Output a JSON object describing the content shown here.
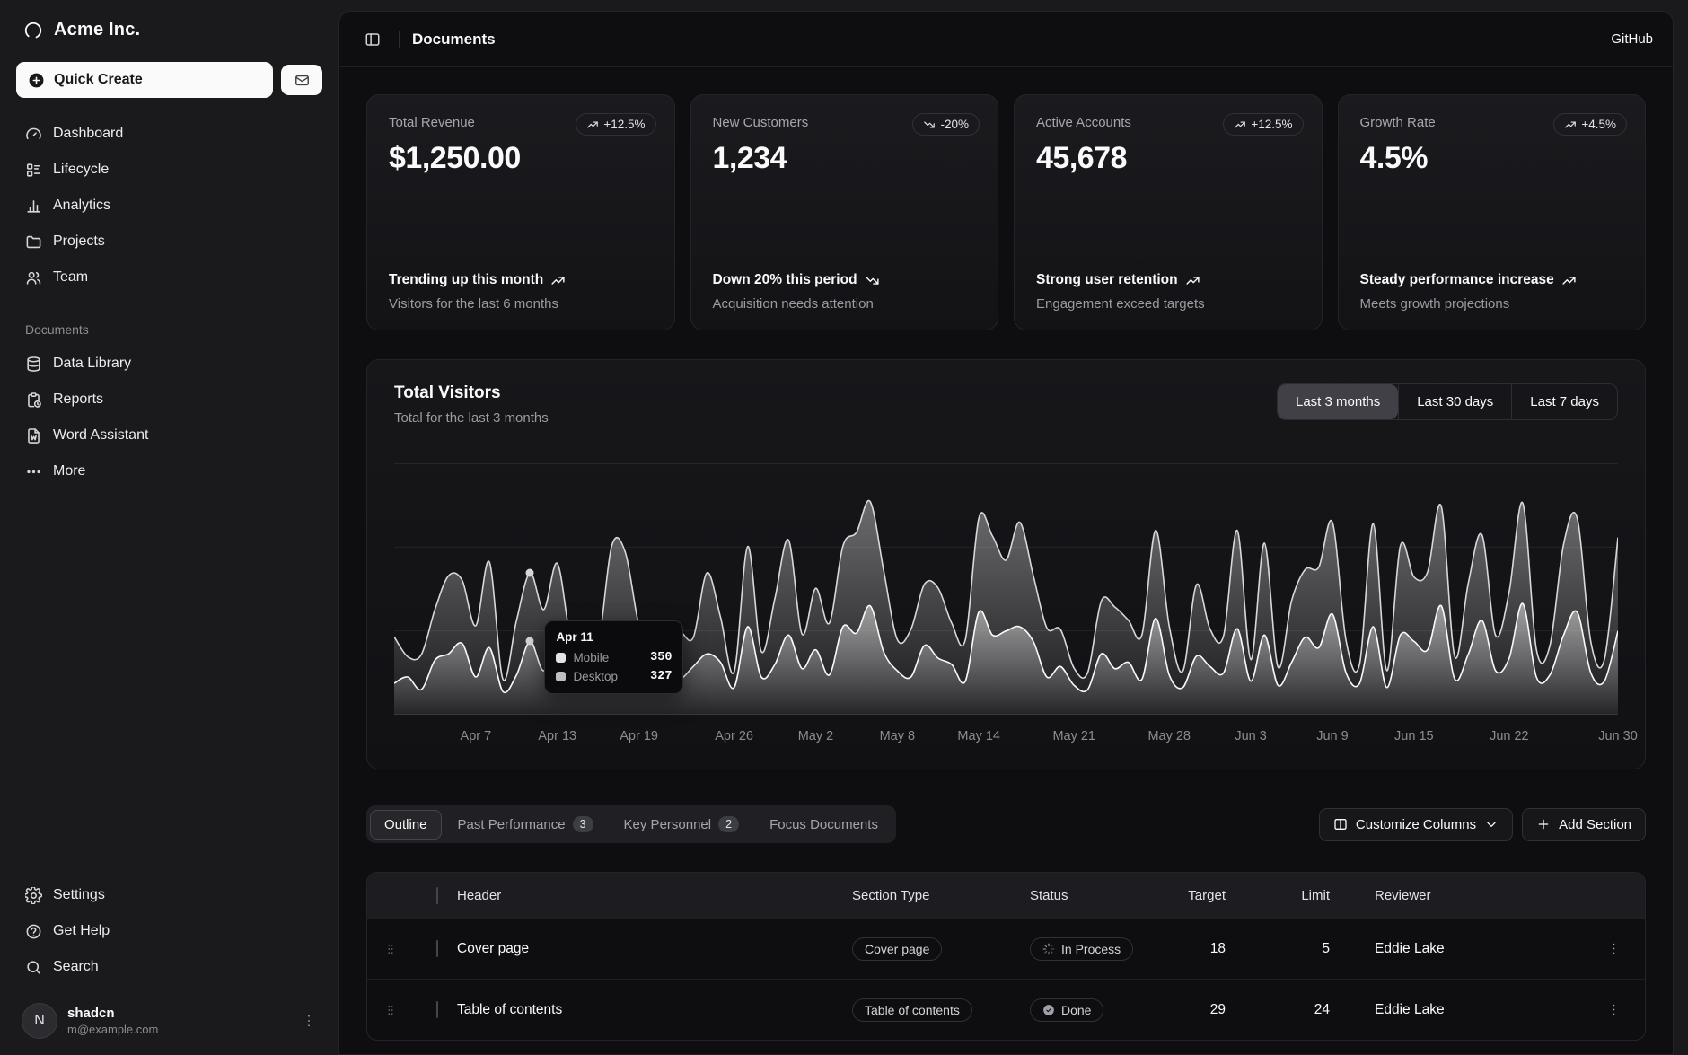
{
  "brand": {
    "name": "Acme Inc.",
    "logo_icon": "ring"
  },
  "header": {
    "title": "Documents",
    "link": "GitHub"
  },
  "sidebar": {
    "quick_create": {
      "label": "Quick Create",
      "icon": "circle-plus"
    },
    "inbox_icon": "mail",
    "main_items": [
      {
        "label": "Dashboard",
        "icon": "dashboard"
      },
      {
        "label": "Lifecycle",
        "icon": "lifecycle"
      },
      {
        "label": "Analytics",
        "icon": "analytics"
      },
      {
        "label": "Projects",
        "icon": "folder"
      },
      {
        "label": "Team",
        "icon": "users"
      }
    ],
    "documents_label": "Documents",
    "document_items": [
      {
        "label": "Data Library",
        "icon": "database"
      },
      {
        "label": "Reports",
        "icon": "report"
      },
      {
        "label": "Word Assistant",
        "icon": "file-word"
      },
      {
        "label": "More",
        "icon": "dots"
      }
    ],
    "footer_items": [
      {
        "label": "Settings",
        "icon": "settings"
      },
      {
        "label": "Get Help",
        "icon": "help"
      },
      {
        "label": "Search",
        "icon": "search"
      }
    ],
    "user": {
      "name": "shadcn",
      "email": "m@example.com",
      "avatar_initial": "N"
    }
  },
  "stat_cards": [
    {
      "label": "Total Revenue",
      "badge": "+12.5%",
      "trend": "up",
      "value": "$1,250.00",
      "footer_title": "Trending up this month",
      "footer_note": "Visitors for the last 6 months"
    },
    {
      "label": "New Customers",
      "badge": "-20%",
      "trend": "down",
      "value": "1,234",
      "footer_title": "Down 20% this period",
      "footer_note": "Acquisition needs attention"
    },
    {
      "label": "Active Accounts",
      "badge": "+12.5%",
      "trend": "up",
      "value": "45,678",
      "footer_title": "Strong user retention",
      "footer_note": "Engagement exceed targets"
    },
    {
      "label": "Growth Rate",
      "badge": "+4.5%",
      "trend": "up",
      "value": "4.5%",
      "footer_title": "Steady performance increase",
      "footer_note": "Meets growth projections"
    }
  ],
  "visitors": {
    "title": "Total Visitors",
    "subtitle": "Total for the last 3 months",
    "ranges": [
      "Last 3 months",
      "Last 30 days",
      "Last 7 days"
    ],
    "active_range": "Last 3 months"
  },
  "chart_data": {
    "type": "area",
    "stacked": true,
    "title": "Total Visitors",
    "start_date": "2024-04-01",
    "end_date": "2024-06-30",
    "ylim": [
      0,
      1200
    ],
    "grid": true,
    "colors": {
      "line": "#fafafa",
      "fill_top": "#fafafa"
    },
    "ticks": [
      {
        "label": "Apr 7",
        "index": 6
      },
      {
        "label": "Apr 13",
        "index": 12
      },
      {
        "label": "Apr 19",
        "index": 18
      },
      {
        "label": "Apr 26",
        "index": 25
      },
      {
        "label": "May 2",
        "index": 31
      },
      {
        "label": "May 8",
        "index": 37
      },
      {
        "label": "May 14",
        "index": 43
      },
      {
        "label": "May 21",
        "index": 50
      },
      {
        "label": "May 28",
        "index": 57
      },
      {
        "label": "Jun 3",
        "index": 63
      },
      {
        "label": "Jun 9",
        "index": 69
      },
      {
        "label": "Jun 15",
        "index": 75
      },
      {
        "label": "Jun 22",
        "index": 82
      },
      {
        "label": "Jun 30",
        "index": 90
      }
    ],
    "series": [
      {
        "name": "Desktop",
        "values": [
          222,
          97,
          167,
          242,
          373,
          301,
          245,
          409,
          59,
          261,
          327,
          292,
          342,
          137,
          120,
          138,
          446,
          364,
          243,
          89,
          137,
          224,
          138,
          387,
          215,
          75,
          383,
          122,
          315,
          454,
          165,
          293,
          247,
          385,
          481,
          498,
          388,
          149,
          227,
          293,
          335,
          197,
          197,
          448,
          473,
          338,
          499,
          315,
          235,
          177,
          82,
          81,
          252,
          294,
          201,
          213,
          420,
          233,
          78,
          340,
          178,
          178,
          470,
          103,
          439,
          88,
          294,
          323,
          385,
          438,
          155,
          92,
          492,
          81,
          426,
          307,
          371,
          475,
          107,
          341,
          408,
          169,
          317,
          480,
          132,
          141,
          434,
          448,
          149,
          103,
          446
        ]
      },
      {
        "name": "Mobile",
        "values": [
          150,
          180,
          120,
          260,
          290,
          340,
          180,
          320,
          110,
          190,
          350,
          210,
          380,
          220,
          170,
          190,
          360,
          410,
          180,
          150,
          200,
          170,
          230,
          290,
          250,
          130,
          420,
          180,
          240,
          380,
          220,
          310,
          190,
          420,
          390,
          520,
          300,
          210,
          180,
          330,
          270,
          240,
          160,
          490,
          380,
          400,
          420,
          350,
          180,
          230,
          140,
          120,
          290,
          220,
          250,
          170,
          460,
          190,
          130,
          280,
          230,
          200,
          410,
          160,
          380,
          140,
          250,
          370,
          320,
          480,
          200,
          150,
          420,
          130,
          380,
          350,
          310,
          520,
          170,
          290,
          450,
          210,
          270,
          530,
          180,
          190,
          380,
          490,
          200,
          160,
          400
        ]
      }
    ],
    "tooltip": {
      "index": 10,
      "date": "Apr 11",
      "rows": [
        {
          "label": "Mobile",
          "value": "350",
          "swatch": "#e4e4e7"
        },
        {
          "label": "Desktop",
          "value": "327",
          "swatch": "#bebec4"
        }
      ]
    }
  },
  "tabs": [
    {
      "label": "Outline",
      "active": true
    },
    {
      "label": "Past Performance",
      "badge": "3"
    },
    {
      "label": "Key Personnel",
      "badge": "2"
    },
    {
      "label": "Focus Documents"
    }
  ],
  "toolbar": {
    "customize_label": "Customize Columns",
    "add_label": "Add Section"
  },
  "table": {
    "columns": {
      "header": "Header",
      "type": "Section Type",
      "status": "Status",
      "target": "Target",
      "limit": "Limit",
      "reviewer": "Reviewer"
    },
    "rows": [
      {
        "header": "Cover page",
        "type": "Cover page",
        "status": "In Process",
        "status_icon": "loader",
        "target": "18",
        "limit": "5",
        "reviewer": "Eddie Lake"
      },
      {
        "header": "Table of contents",
        "type": "Table of contents",
        "status": "Done",
        "status_icon": "circle-check",
        "target": "29",
        "limit": "24",
        "reviewer": "Eddie Lake"
      }
    ]
  }
}
